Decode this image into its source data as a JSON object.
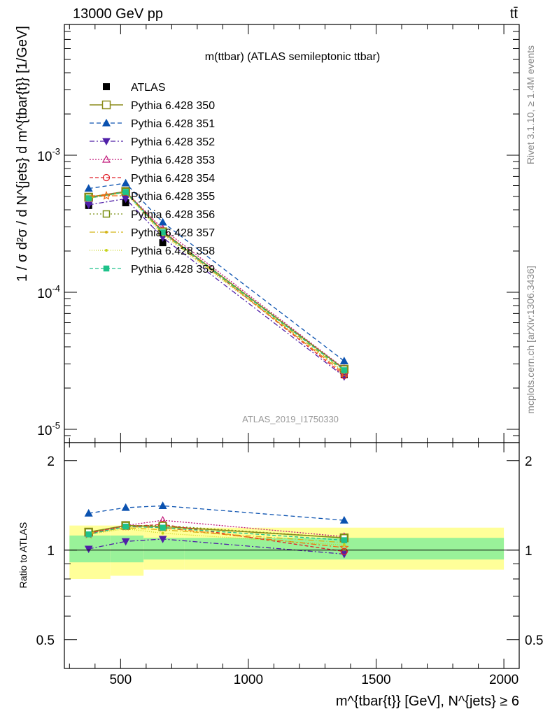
{
  "header": {
    "energy_label": "13000 GeV pp",
    "process_label": "tt̄",
    "rivet_label": "Rivet 3.1.10, ≥ 1.4M events",
    "mcplots_label": "mcplots.cern.ch [arXiv:1306.3436]"
  },
  "chart_data": {
    "type": "line",
    "title": "m(ttbar) (ATLAS semileptonic ttbar)",
    "watermark": "ATLAS_2019_I1750330",
    "xlabel": "m^{tbar{t}} [GeV], N^{jets} ≥ 6",
    "ylabel": "1 / σ d²σ / d N^{jets} d m^{tbar{t}} [1/GeV]",
    "ratio_ylabel": "Ratio to ATLAS",
    "yscale": "log",
    "xlim": [
      280,
      2060
    ],
    "ylim": [
      8e-06,
      0.009
    ],
    "ratio_ylim": [
      0.4,
      2.3
    ],
    "x_ticks": [
      "500",
      "1000",
      "1500",
      "2000"
    ],
    "y_ticks": [
      "10^-5",
      "10^-4",
      "10^-3"
    ],
    "ratio_ticks": [
      "0.5",
      "1",
      "2"
    ],
    "legend_position": "top-left",
    "bins": [
      {
        "x": 375,
        "xlo": 300,
        "xhi": 460
      },
      {
        "x": 520,
        "xlo": 460,
        "xhi": 590
      },
      {
        "x": 665,
        "xlo": 590,
        "xhi": 750
      },
      {
        "x": 1375,
        "xlo": 750,
        "xhi": 2000
      }
    ],
    "data": {
      "name": "ATLAS",
      "values": [
        0.00043,
        0.00045,
        0.00023,
        2.5e-05
      ],
      "band_inner": [
        [
          0.91,
          1.12
        ],
        [
          0.91,
          1.12
        ],
        [
          0.93,
          1.1
        ],
        [
          0.93,
          1.1
        ]
      ],
      "band_outer": [
        [
          0.8,
          1.21
        ],
        [
          0.82,
          1.21
        ],
        [
          0.86,
          1.19
        ],
        [
          0.86,
          1.19
        ]
      ]
    },
    "series": [
      {
        "name": "Pythia 6.428 350",
        "ratio": [
          1.15,
          1.21,
          1.2,
          1.1
        ],
        "color": "#8b8b1a",
        "dash": "",
        "marker": "open-square",
        "markerSize": 11,
        "width": 1.6
      },
      {
        "name": "Pythia 6.428 351",
        "ratio": [
          1.33,
          1.39,
          1.41,
          1.26
        ],
        "color": "#0b52b0",
        "dash": "6,4",
        "marker": "triangle-up",
        "markerSize": 10,
        "width": 1.3
      },
      {
        "name": "Pythia 6.428 352",
        "ratio": [
          1.01,
          1.07,
          1.09,
          0.97
        ],
        "color": "#5020a8",
        "dash": "7,3,2,3",
        "marker": "triangle-down",
        "markerSize": 10,
        "width": 1.3
      },
      {
        "name": "Pythia 6.428 353",
        "ratio": [
          1.14,
          1.21,
          1.26,
          1.11
        ],
        "color": "#c2187a",
        "dash": "2,2",
        "marker": "open-triangle",
        "markerSize": 10,
        "width": 1.3
      },
      {
        "name": "Pythia 6.428 354",
        "ratio": [
          1.14,
          1.2,
          1.22,
          0.99
        ],
        "color": "#e0202a",
        "dash": "5,3",
        "marker": "open-circle",
        "markerSize": 9,
        "width": 1.3
      },
      {
        "name": "Pythia 6.428 355",
        "ratio": [
          1.13,
          1.2,
          1.19,
          1.02
        ],
        "color": "#f06a10",
        "dash": "8,3,2,3",
        "marker": "star",
        "markerSize": 11,
        "width": 1.3
      },
      {
        "name": "Pythia 6.428 356",
        "ratio": [
          1.15,
          1.21,
          1.21,
          1.1
        ],
        "color": "#7a8f12",
        "dash": "2,3",
        "marker": "open-square",
        "markerSize": 9,
        "width": 1.3
      },
      {
        "name": "Pythia 6.428 357",
        "ratio": [
          1.14,
          1.19,
          1.17,
          1.06
        ],
        "color": "#d4b418",
        "dash": "8,3,1,3",
        "marker": "small-dot",
        "markerSize": 4,
        "width": 1.3
      },
      {
        "name": "Pythia 6.428 358",
        "ratio": [
          1.13,
          1.18,
          1.14,
          1.04
        ],
        "color": "#c6d41a",
        "dash": "1,2",
        "marker": "small-dot",
        "markerSize": 4,
        "width": 1.3
      },
      {
        "name": "Pythia 6.428 359",
        "ratio": [
          1.13,
          1.2,
          1.19,
          1.08
        ],
        "color": "#1fc28a",
        "dash": "5,3",
        "marker": "filled-square",
        "markerSize": 7,
        "width": 1.3
      }
    ]
  }
}
